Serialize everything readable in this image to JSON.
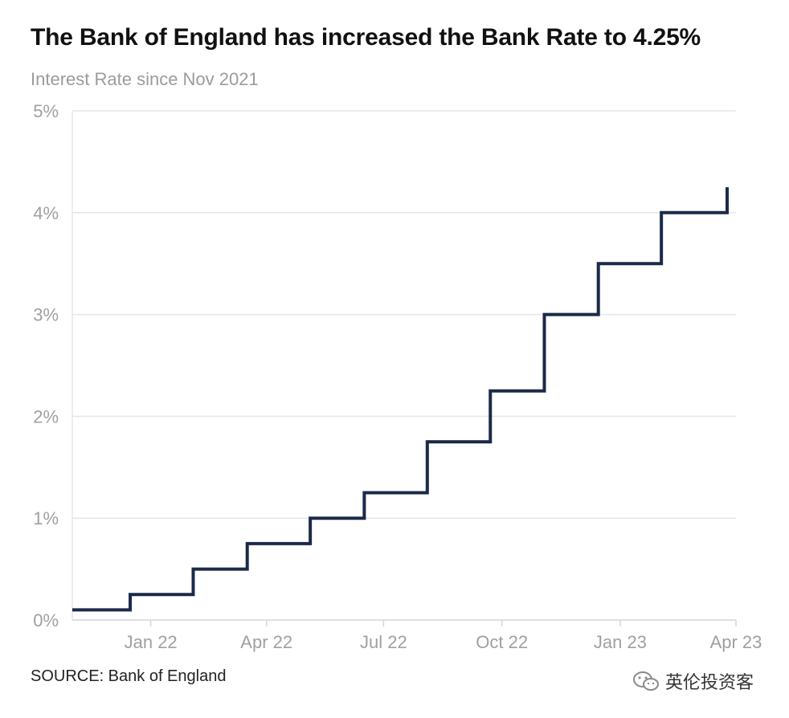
{
  "title": "The Bank of England has increased the Bank Rate to 4.25%",
  "subtitle": "Interest Rate since Nov 2021",
  "source": "SOURCE: Bank of England",
  "watermark": {
    "text": "英伦投资客",
    "icon": "wechat-icon"
  },
  "colors": {
    "line": "#1b2a4a",
    "grid": "#e6e6e6",
    "tick_text": "#a0a0a0"
  },
  "chart_data": {
    "type": "line",
    "step": true,
    "grid": "horizontal",
    "xlim": [
      "2021-11-01",
      "2023-04-01"
    ],
    "ylim": [
      0,
      5
    ],
    "y_ticks": [
      0,
      1,
      2,
      3,
      4,
      5
    ],
    "y_tick_labels": [
      "0%",
      "1%",
      "2%",
      "3%",
      "4%",
      "5%"
    ],
    "x_ticks": [
      "2022-01-01",
      "2022-04-01",
      "2022-07-01",
      "2022-10-01",
      "2023-01-01",
      "2023-04-01"
    ],
    "x_tick_labels": [
      "Jan 22",
      "Apr 22",
      "Jul 22",
      "Oct 22",
      "Jan 23",
      "Apr 23"
    ],
    "series": [
      {
        "x": [
          "2021-11-01",
          "2021-12-16",
          "2022-02-03",
          "2022-03-17",
          "2022-05-05",
          "2022-06-16",
          "2022-08-04",
          "2022-09-22",
          "2022-11-03",
          "2022-12-15",
          "2023-02-02",
          "2023-03-23"
        ],
        "y": [
          0.1,
          0.25,
          0.5,
          0.75,
          1.0,
          1.25,
          1.75,
          2.25,
          3.0,
          3.5,
          4.0,
          4.25
        ]
      }
    ]
  }
}
